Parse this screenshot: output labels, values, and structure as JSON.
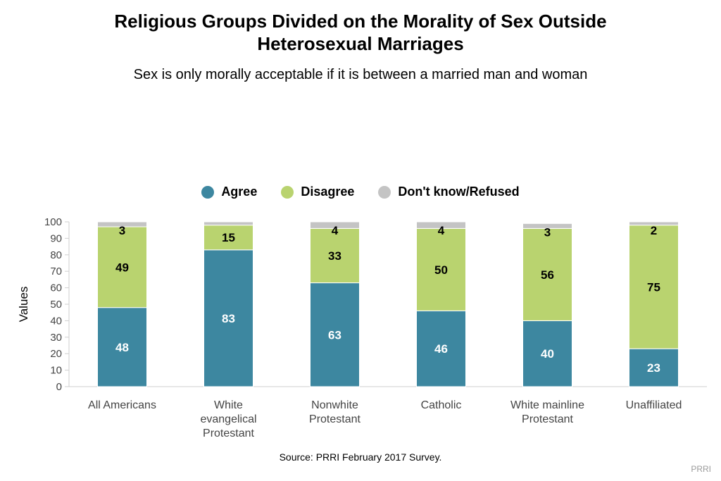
{
  "title_line1": "Religious Groups Divided on the Morality of Sex Outside",
  "title_line2": "Heterosexual Marriages",
  "subtitle": "Sex is only morally acceptable if it is between a married man and woman",
  "source": "Source: PRRI February 2017 Survey.",
  "brand": "PRRI",
  "colors": {
    "agree": "#3d87a0",
    "disagree": "#b9d36f",
    "dontknow": "#c4c4c4"
  },
  "chart_data": {
    "type": "bar",
    "stacked": true,
    "categories": [
      [
        "All Americans"
      ],
      [
        "White",
        "evangelical",
        "Protestant"
      ],
      [
        "Nonwhite",
        "Protestant"
      ],
      [
        "Catholic"
      ],
      [
        "White mainline",
        "Protestant"
      ],
      [
        "Unaffiliated"
      ]
    ],
    "series": [
      {
        "name": "Agree",
        "values": [
          48,
          83,
          63,
          46,
          40,
          23
        ]
      },
      {
        "name": "Disagree",
        "values": [
          49,
          15,
          33,
          50,
          56,
          75
        ]
      },
      {
        "name": "Don't know/Refused",
        "values": [
          3,
          2,
          4,
          4,
          3,
          2
        ]
      }
    ],
    "data_labels": [
      [
        "48",
        "83",
        "63",
        "46",
        "40",
        "23"
      ],
      [
        "49",
        "15",
        "33",
        "50",
        "56",
        "75"
      ],
      [
        "3",
        "",
        "4",
        "4",
        "3",
        "2"
      ]
    ],
    "ylabel": "Values",
    "ylim": [
      0,
      100
    ],
    "yticks": [
      0,
      10,
      20,
      30,
      40,
      50,
      60,
      70,
      80,
      90,
      100
    ],
    "legend_position": "top"
  }
}
